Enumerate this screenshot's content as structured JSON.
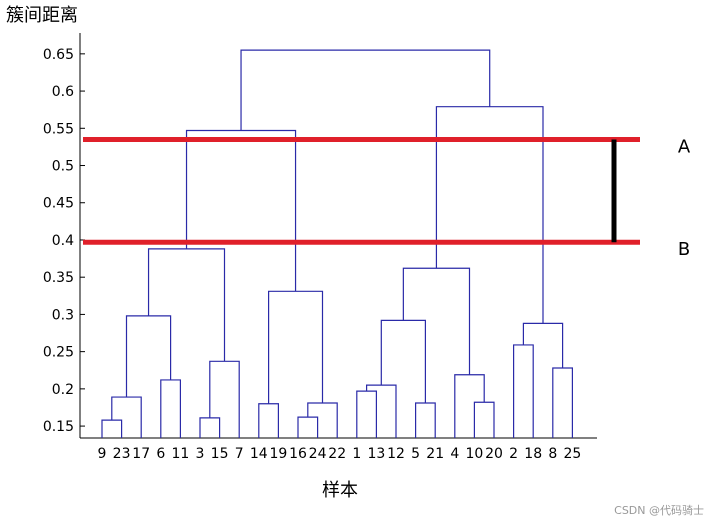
{
  "chart_data": {
    "type": "dendrogram",
    "y_label": "簇间距离",
    "x_label": "样本",
    "categories": [
      "9",
      "23",
      "17",
      "6",
      "11",
      "3",
      "15",
      "7",
      "14",
      "19",
      "16",
      "24",
      "22",
      "1",
      "13",
      "12",
      "5",
      "21",
      "4",
      "10",
      "20",
      "2",
      "18",
      "8",
      "25"
    ],
    "merges": [
      {
        "left": 0,
        "right": 1,
        "height": 0.158
      },
      {
        "left": 25,
        "right": 2,
        "height": 0.189
      },
      {
        "left": 3,
        "right": 4,
        "height": 0.212
      },
      {
        "left": 26,
        "right": 27,
        "height": 0.298
      },
      {
        "left": 5,
        "right": 6,
        "height": 0.161
      },
      {
        "left": 29,
        "right": 7,
        "height": 0.237
      },
      {
        "left": 28,
        "right": 30,
        "height": 0.388
      },
      {
        "left": 8,
        "right": 9,
        "height": 0.18
      },
      {
        "left": 10,
        "right": 11,
        "height": 0.162
      },
      {
        "left": 33,
        "right": 12,
        "height": 0.181
      },
      {
        "left": 32,
        "right": 34,
        "height": 0.331
      },
      {
        "left": 31,
        "right": 35,
        "height": 0.547
      },
      {
        "left": 13,
        "right": 14,
        "height": 0.197
      },
      {
        "left": 37,
        "right": 15,
        "height": 0.205
      },
      {
        "left": 16,
        "right": 17,
        "height": 0.181
      },
      {
        "left": 38,
        "right": 39,
        "height": 0.292
      },
      {
        "left": 19,
        "right": 20,
        "height": 0.182
      },
      {
        "left": 18,
        "right": 41,
        "height": 0.219
      },
      {
        "left": 40,
        "right": 42,
        "height": 0.362
      },
      {
        "left": 21,
        "right": 22,
        "height": 0.259
      },
      {
        "left": 23,
        "right": 24,
        "height": 0.228
      },
      {
        "left": 44,
        "right": 45,
        "height": 0.288
      },
      {
        "left": 43,
        "right": 46,
        "height": 0.579
      },
      {
        "left": 36,
        "right": 47,
        "height": 0.655
      }
    ],
    "color": "#2a2aa8",
    "ylim": [
      0.134,
      0.678
    ],
    "yticks": [
      0.15,
      0.2,
      0.25,
      0.3,
      0.35,
      0.4,
      0.45,
      0.5,
      0.55,
      0.6,
      0.65
    ],
    "thresholds": [
      {
        "label": "A",
        "value": 0.535,
        "color": "#e0202a"
      },
      {
        "label": "B",
        "value": 0.397,
        "color": "#e0202a"
      }
    ],
    "gap_color": "#000000",
    "watermark": "CSDN @代码骑士"
  }
}
